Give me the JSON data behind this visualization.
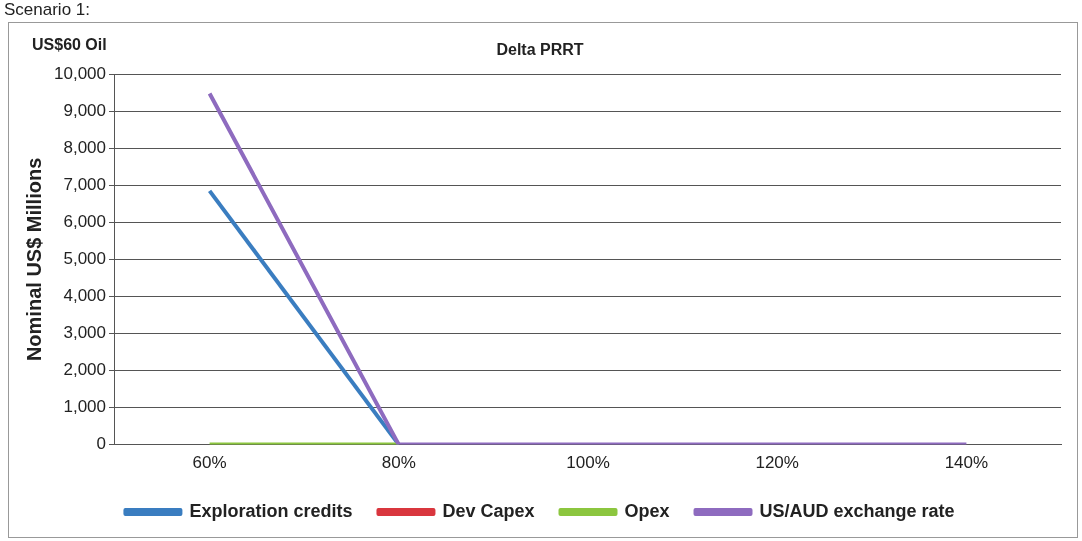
{
  "chart_data": {
    "type": "line",
    "title": "Delta PRRT",
    "ylabel": "Nominal US$ Millions",
    "annotations": [
      "Scenario 1:",
      "US$60 Oil"
    ],
    "categories": [
      "60%",
      "80%",
      "100%",
      "120%",
      "140%"
    ],
    "series": [
      {
        "name": "Exploration credits",
        "color": "#3a7dc0",
        "values": [
          6850,
          0,
          null,
          null,
          null
        ]
      },
      {
        "name": "Dev Capex",
        "color": "#d9363e",
        "values": [
          null,
          null,
          null,
          null,
          null
        ]
      },
      {
        "name": "Opex",
        "color": "#8cc63f",
        "values": [
          0,
          0,
          null,
          null,
          null
        ]
      },
      {
        "name": "US/AUD exchange rate",
        "color": "#8e6bbf",
        "values": [
          9480,
          0,
          0,
          0,
          0
        ]
      }
    ],
    "ylim": [
      0,
      10000
    ],
    "yticks": [
      {
        "value": 0,
        "label": "0"
      },
      {
        "value": 1000,
        "label": "1,000"
      },
      {
        "value": 2000,
        "label": "2,000"
      },
      {
        "value": 3000,
        "label": "3,000"
      },
      {
        "value": 4000,
        "label": "4,000"
      },
      {
        "value": 5000,
        "label": "5,000"
      },
      {
        "value": 6000,
        "label": "6,000"
      },
      {
        "value": 7000,
        "label": "7,000"
      },
      {
        "value": 8000,
        "label": "8,000"
      },
      {
        "value": 9000,
        "label": "9,000"
      },
      {
        "value": 10000,
        "label": "10,000"
      }
    ],
    "grid": "y",
    "legend": "bottom",
    "marker": "none",
    "line_style": "solid"
  }
}
